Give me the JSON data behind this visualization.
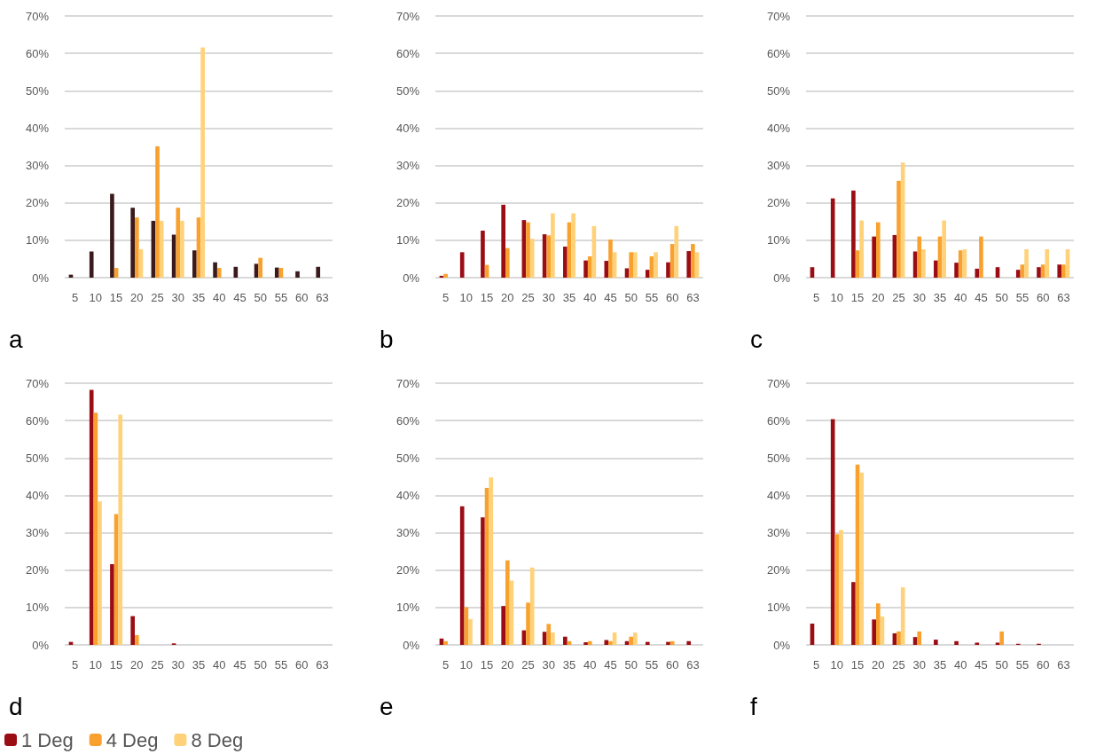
{
  "chart_data": [
    {
      "type": "bar",
      "categories": [
        "5",
        "10",
        "15",
        "20",
        "25",
        "30",
        "35",
        "40",
        "45",
        "50",
        "55",
        "60",
        "63"
      ],
      "ylim": [
        0,
        70
      ],
      "yticks": [
        {
          "value": 0,
          "label": "0%"
        },
        {
          "value": 10,
          "label": "10%"
        },
        {
          "value": 20,
          "label": "20%"
        },
        {
          "value": 30,
          "label": "30%"
        },
        {
          "value": 40,
          "label": "40%"
        },
        {
          "value": 50,
          "label": "50%"
        },
        {
          "value": 60,
          "label": "60%"
        },
        {
          "value": 70,
          "label": "70%"
        }
      ],
      "grid": "y",
      "annotations": [
        "a"
      ],
      "series": [
        {
          "color": "#3a1a1c",
          "values": [
            0.8,
            7.0,
            22.4,
            18.7,
            15.2,
            11.5,
            7.3,
            4.1,
            2.9,
            3.7,
            2.7,
            1.7,
            2.9
          ]
        },
        {
          "color": "#f9a12e",
          "values": [
            0,
            0,
            2.6,
            16.1,
            35.1,
            18.7,
            16.1,
            2.6,
            0,
            5.3,
            2.6,
            0,
            0
          ]
        },
        {
          "color": "#ffd27a",
          "values": [
            0,
            0,
            0,
            7.6,
            15.2,
            15.2,
            61.6,
            0,
            0,
            0,
            0,
            0,
            0
          ]
        }
      ]
    },
    {
      "type": "bar",
      "categories": [
        "5",
        "10",
        "15",
        "20",
        "25",
        "30",
        "35",
        "40",
        "45",
        "50",
        "55",
        "60",
        "63"
      ],
      "ylim": [
        0,
        70
      ],
      "yticks": [
        {
          "value": 0,
          "label": "0%"
        },
        {
          "value": 10,
          "label": "10%"
        },
        {
          "value": 20,
          "label": "20%"
        },
        {
          "value": 30,
          "label": "30%"
        },
        {
          "value": 40,
          "label": "40%"
        },
        {
          "value": 50,
          "label": "50%"
        },
        {
          "value": 60,
          "label": "60%"
        },
        {
          "value": 70,
          "label": "70%"
        }
      ],
      "grid": "y",
      "annotations": [
        "b"
      ],
      "series": [
        {
          "color": "#9b0d14",
          "values": [
            0.5,
            6.8,
            12.6,
            19.5,
            15.4,
            11.6,
            8.3,
            4.6,
            4.5,
            2.5,
            2.1,
            4.1,
            7.1
          ]
        },
        {
          "color": "#f9a12e",
          "values": [
            1.0,
            0,
            3.4,
            7.9,
            14.8,
            11.3,
            14.8,
            5.7,
            10.2,
            6.8,
            5.7,
            9.0,
            9.0
          ]
        },
        {
          "color": "#ffd27a",
          "values": [
            0,
            0,
            0,
            0,
            10.4,
            17.2,
            17.2,
            13.8,
            6.8,
            6.8,
            6.8,
            13.8,
            6.8
          ]
        }
      ]
    },
    {
      "type": "bar",
      "categories": [
        "5",
        "10",
        "15",
        "20",
        "25",
        "30",
        "35",
        "40",
        "45",
        "50",
        "55",
        "60",
        "63"
      ],
      "ylim": [
        0,
        70
      ],
      "yticks": [
        {
          "value": 0,
          "label": "0%"
        },
        {
          "value": 10,
          "label": "10%"
        },
        {
          "value": 20,
          "label": "20%"
        },
        {
          "value": 30,
          "label": "30%"
        },
        {
          "value": 40,
          "label": "40%"
        },
        {
          "value": 50,
          "label": "50%"
        },
        {
          "value": 60,
          "label": "60%"
        },
        {
          "value": 70,
          "label": "70%"
        }
      ],
      "grid": "y",
      "annotations": [
        "c"
      ],
      "series": [
        {
          "color": "#9b0d14",
          "values": [
            2.8,
            21.2,
            23.3,
            11.0,
            11.4,
            7.0,
            4.6,
            4.0,
            2.4,
            2.8,
            2.1,
            2.8,
            3.5
          ]
        },
        {
          "color": "#f9a12e",
          "values": [
            0,
            0,
            7.3,
            14.8,
            25.9,
            11.0,
            11.0,
            7.3,
            11.0,
            0,
            3.5,
            3.5,
            3.5
          ]
        },
        {
          "color": "#ffd27a",
          "values": [
            0,
            0,
            15.3,
            0,
            30.8,
            7.6,
            15.3,
            7.6,
            0,
            0,
            7.6,
            7.6,
            7.6
          ]
        }
      ]
    },
    {
      "type": "bar",
      "categories": [
        "5",
        "10",
        "15",
        "20",
        "25",
        "30",
        "35",
        "40",
        "45",
        "50",
        "55",
        "60",
        "63"
      ],
      "ylim": [
        0,
        70
      ],
      "yticks": [
        {
          "value": 0,
          "label": "0%"
        },
        {
          "value": 10,
          "label": "10%"
        },
        {
          "value": 20,
          "label": "20%"
        },
        {
          "value": 30,
          "label": "30%"
        },
        {
          "value": 40,
          "label": "40%"
        },
        {
          "value": 50,
          "label": "50%"
        },
        {
          "value": 60,
          "label": "60%"
        },
        {
          "value": 70,
          "label": "70%"
        }
      ],
      "grid": "y",
      "annotations": [
        "d"
      ],
      "legend": "bottom left",
      "series": [
        {
          "name": "1 Deg",
          "color": "#9b0d14",
          "values": [
            0.8,
            68.2,
            21.6,
            7.7,
            0,
            0.4,
            0,
            0,
            0,
            0,
            0,
            0,
            0
          ]
        },
        {
          "name": "4 Deg",
          "color": "#f9a12e",
          "values": [
            0,
            62.1,
            35.0,
            2.6,
            0,
            0,
            0,
            0,
            0,
            0,
            0,
            0,
            0
          ]
        },
        {
          "name": "8 Deg",
          "color": "#ffd27a",
          "values": [
            0,
            38.4,
            61.6,
            0,
            0,
            0,
            0,
            0,
            0,
            0,
            0,
            0,
            0
          ]
        }
      ]
    },
    {
      "type": "bar",
      "categories": [
        "5",
        "10",
        "15",
        "20",
        "25",
        "30",
        "35",
        "40",
        "45",
        "50",
        "55",
        "60",
        "63"
      ],
      "ylim": [
        0,
        70
      ],
      "yticks": [
        {
          "value": 0,
          "label": "0%"
        },
        {
          "value": 10,
          "label": "10%"
        },
        {
          "value": 20,
          "label": "20%"
        },
        {
          "value": 30,
          "label": "30%"
        },
        {
          "value": 40,
          "label": "40%"
        },
        {
          "value": 50,
          "label": "50%"
        },
        {
          "value": 60,
          "label": "60%"
        },
        {
          "value": 70,
          "label": "70%"
        }
      ],
      "grid": "y",
      "annotations": [
        "e"
      ],
      "series": [
        {
          "color": "#9b0d14",
          "values": [
            1.7,
            37.1,
            34.1,
            10.4,
            3.9,
            3.5,
            2.2,
            0.7,
            1.3,
            1.0,
            0.8,
            0.8,
            1.0
          ]
        },
        {
          "color": "#f9a12e",
          "values": [
            1.0,
            10.1,
            42.0,
            22.6,
            11.3,
            5.6,
            1.0,
            1.0,
            1.0,
            2.2,
            0,
            1.0,
            0
          ]
        },
        {
          "color": "#ffd27a",
          "values": [
            0,
            6.9,
            44.8,
            17.2,
            20.7,
            3.3,
            0,
            0,
            3.3,
            3.3,
            0,
            0,
            0
          ]
        }
      ]
    },
    {
      "type": "bar",
      "categories": [
        "5",
        "10",
        "15",
        "20",
        "25",
        "30",
        "35",
        "40",
        "45",
        "50",
        "55",
        "60",
        "63"
      ],
      "ylim": [
        0,
        70
      ],
      "yticks": [
        {
          "value": 0,
          "label": "0%"
        },
        {
          "value": 10,
          "label": "10%"
        },
        {
          "value": 20,
          "label": "20%"
        },
        {
          "value": 30,
          "label": "30%"
        },
        {
          "value": 40,
          "label": "40%"
        },
        {
          "value": 50,
          "label": "50%"
        },
        {
          "value": 60,
          "label": "60%"
        },
        {
          "value": 70,
          "label": "70%"
        }
      ],
      "grid": "y",
      "annotations": [
        "f"
      ],
      "series": [
        {
          "color": "#9b0d14",
          "values": [
            5.7,
            60.4,
            16.8,
            6.8,
            3.1,
            2.1,
            1.4,
            1.0,
            0.6,
            0.6,
            0.3,
            0.3,
            0
          ]
        },
        {
          "color": "#f9a12e",
          "values": [
            0,
            29.6,
            48.2,
            11.1,
            3.6,
            3.6,
            0,
            0,
            0,
            3.6,
            0,
            0,
            0
          ]
        },
        {
          "color": "#ffd27a",
          "values": [
            0,
            30.7,
            46.1,
            7.6,
            15.4,
            0,
            0,
            0,
            0,
            0,
            0,
            0,
            0
          ]
        }
      ]
    }
  ]
}
